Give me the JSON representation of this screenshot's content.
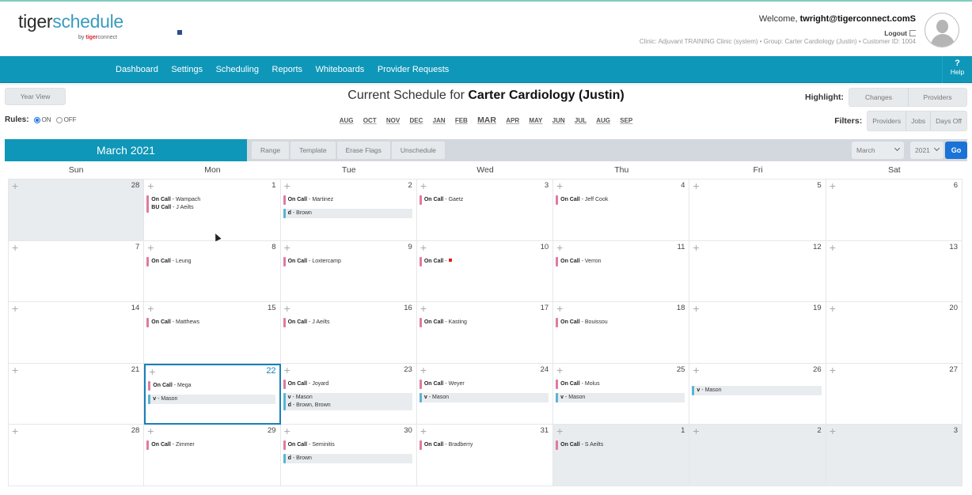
{
  "brand": {
    "name_part1": "tiger",
    "name_part2": "schedule",
    "by": "by",
    "sub_part1": "tiger",
    "sub_part2": "connect"
  },
  "user": {
    "welcome_prefix": "Welcome, ",
    "email": "twright@tigerconnect.comS",
    "logout": "Logout",
    "clinic_info": "Clinic: Adjuvant TRAINING Clinic (system) • Group: Carter Cardiology (Justin) • Customer ID: 1004"
  },
  "nav": {
    "items": [
      "Dashboard",
      "Settings",
      "Scheduling",
      "Reports",
      "Whiteboards",
      "Provider Requests"
    ],
    "help_icon": "?",
    "help_label": "Help"
  },
  "subheader": {
    "year_view": "Year View",
    "title_prefix": "Current Schedule for ",
    "title_group": "Carter Cardiology (Justin)",
    "highlight_label": "Highlight:",
    "highlight_options": [
      "Changes",
      "Providers"
    ],
    "rules_label": "Rules:",
    "rules_on": "ON",
    "rules_off": "OFF",
    "rules_value": "ON",
    "months": [
      "AUG",
      "OCT",
      "NOV",
      "DEC",
      "JAN",
      "FEB",
      "MAR",
      "APR",
      "MAY",
      "JUN",
      "JUL",
      "AUG",
      "SEP"
    ],
    "current_month_index": 6,
    "filters_label": "Filters:",
    "filter_options": [
      "Providers",
      "Jobs",
      "Days Off"
    ]
  },
  "toolbar": {
    "month_title": "March 2021",
    "buttons": [
      "Range",
      "Template",
      "Erase Flags",
      "Unschedule"
    ],
    "month_select": "March",
    "year_select": "2021",
    "go": "Go"
  },
  "calendar": {
    "days_of_week": [
      "Sun",
      "Mon",
      "Tue",
      "Wed",
      "Thu",
      "Fri",
      "Sat"
    ],
    "weeks": [
      [
        {
          "day": "28",
          "other": true,
          "events": []
        },
        {
          "day": "1",
          "events": [
            {
              "type": "pink",
              "lines": [
                {
                  "job": "On Call",
                  "name": "Wampach"
                },
                {
                  "job": "BU Call",
                  "name": "J Aeilts"
                }
              ]
            }
          ]
        },
        {
          "day": "2",
          "events": [
            {
              "type": "pink",
              "lines": [
                {
                  "job": "On Call",
                  "name": "Martinez"
                }
              ]
            },
            {
              "type": "blue",
              "lines": [
                {
                  "job": "d",
                  "name": "Brown"
                }
              ]
            }
          ]
        },
        {
          "day": "3",
          "events": [
            {
              "type": "pink",
              "lines": [
                {
                  "job": "On Call",
                  "name": "Gaetz"
                }
              ]
            }
          ]
        },
        {
          "day": "4",
          "events": [
            {
              "type": "pink",
              "lines": [
                {
                  "job": "On Call",
                  "name": "Jeff Cook"
                }
              ]
            }
          ]
        },
        {
          "day": "5",
          "events": []
        },
        {
          "day": "6",
          "events": []
        }
      ],
      [
        {
          "day": "7",
          "events": []
        },
        {
          "day": "8",
          "events": [
            {
              "type": "pink",
              "lines": [
                {
                  "job": "On Call",
                  "name": "Leung"
                }
              ]
            }
          ]
        },
        {
          "day": "9",
          "events": [
            {
              "type": "pink",
              "lines": [
                {
                  "job": "On Call",
                  "name": "Loxtercamp"
                }
              ]
            }
          ]
        },
        {
          "day": "10",
          "events": [
            {
              "type": "pink",
              "flag": true,
              "lines": [
                {
                  "job": "On Call",
                  "name": ""
                }
              ]
            }
          ]
        },
        {
          "day": "11",
          "events": [
            {
              "type": "pink",
              "lines": [
                {
                  "job": "On Call",
                  "name": "Verron"
                }
              ]
            }
          ]
        },
        {
          "day": "12",
          "events": []
        },
        {
          "day": "13",
          "events": []
        }
      ],
      [
        {
          "day": "14",
          "events": []
        },
        {
          "day": "15",
          "events": [
            {
              "type": "pink",
              "lines": [
                {
                  "job": "On Call",
                  "name": "Matthews"
                }
              ]
            }
          ]
        },
        {
          "day": "16",
          "events": [
            {
              "type": "pink",
              "lines": [
                {
                  "job": "On Call",
                  "name": "J Aeilts"
                }
              ]
            }
          ]
        },
        {
          "day": "17",
          "events": [
            {
              "type": "pink",
              "lines": [
                {
                  "job": "On Call",
                  "name": "Kasting"
                }
              ]
            }
          ]
        },
        {
          "day": "18",
          "events": [
            {
              "type": "pink",
              "lines": [
                {
                  "job": "On Call",
                  "name": "Bouissou"
                }
              ]
            }
          ]
        },
        {
          "day": "19",
          "events": []
        },
        {
          "day": "20",
          "events": []
        }
      ],
      [
        {
          "day": "21",
          "events": []
        },
        {
          "day": "22",
          "today": true,
          "events": [
            {
              "type": "pink",
              "lines": [
                {
                  "job": "On Call",
                  "name": "Mega"
                }
              ]
            },
            {
              "type": "blue",
              "lines": [
                {
                  "job": "v",
                  "name": "Mason"
                }
              ]
            }
          ]
        },
        {
          "day": "23",
          "events": [
            {
              "type": "pink",
              "lines": [
                {
                  "job": "On Call",
                  "name": "Joyard"
                }
              ]
            },
            {
              "type": "blue",
              "lines": [
                {
                  "job": "v",
                  "name": "Mason"
                },
                {
                  "job": "d",
                  "name": "Brown, Brown"
                }
              ]
            }
          ]
        },
        {
          "day": "24",
          "events": [
            {
              "type": "pink",
              "lines": [
                {
                  "job": "On Call",
                  "name": "Weyer"
                }
              ]
            },
            {
              "type": "blue",
              "lines": [
                {
                  "job": "v",
                  "name": "Mason"
                }
              ]
            }
          ]
        },
        {
          "day": "25",
          "events": [
            {
              "type": "pink",
              "lines": [
                {
                  "job": "On Call",
                  "name": "Molus"
                }
              ]
            },
            {
              "type": "blue",
              "lines": [
                {
                  "job": "v",
                  "name": "Mason"
                }
              ]
            }
          ]
        },
        {
          "day": "26",
          "events": [
            {
              "type": "blue",
              "offset": true,
              "lines": [
                {
                  "job": "v",
                  "name": "Mason"
                }
              ]
            }
          ]
        },
        {
          "day": "27",
          "events": []
        }
      ],
      [
        {
          "day": "28",
          "events": []
        },
        {
          "day": "29",
          "events": [
            {
              "type": "pink",
              "lines": [
                {
                  "job": "On Call",
                  "name": "Zimmer"
                }
              ]
            }
          ]
        },
        {
          "day": "30",
          "events": [
            {
              "type": "pink",
              "lines": [
                {
                  "job": "On Call",
                  "name": "Seminitis"
                }
              ]
            },
            {
              "type": "blue",
              "lines": [
                {
                  "job": "d",
                  "name": "Brown"
                }
              ]
            }
          ]
        },
        {
          "day": "31",
          "events": [
            {
              "type": "pink",
              "lines": [
                {
                  "job": "On Call",
                  "name": "Bradberry"
                }
              ]
            }
          ]
        },
        {
          "day": "1",
          "other": true,
          "events": [
            {
              "type": "pink",
              "lines": [
                {
                  "job": "On Call",
                  "name": "S Aeilts"
                }
              ]
            }
          ]
        },
        {
          "day": "2",
          "other": true,
          "events": []
        },
        {
          "day": "3",
          "other": true,
          "events": []
        }
      ]
    ]
  },
  "colors": {
    "brand_teal": "#0e97b8",
    "on_call_pink": "#e07aa0",
    "day_off_blue": "#5ab3d6",
    "today_border": "#1a7fb8",
    "go_button": "#1a73d6"
  }
}
